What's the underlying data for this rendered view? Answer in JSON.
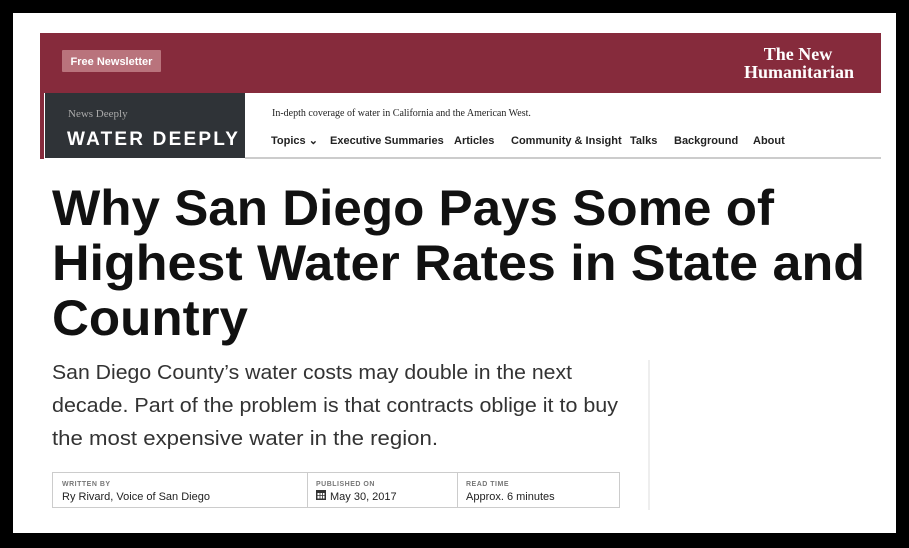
{
  "header": {
    "newsletter_button": "Free Newsletter",
    "brand_line1": "The New",
    "brand_line2": "Humanitarian"
  },
  "site": {
    "network": "News Deeply",
    "name": "WATER DEEPLY",
    "tagline": "In-depth coverage of water in California and the American West."
  },
  "nav": [
    "Topics ⌄",
    "Executive Summaries",
    "Articles",
    "Community & Insight",
    "Talks",
    "Background",
    "About"
  ],
  "article": {
    "headline": [
      "Why San Diego Pays Some of",
      "Highest Water Rates in State and",
      "Country"
    ],
    "summary": [
      "San Diego County’s water costs may double in the next",
      "decade. Part of the problem is that contracts oblige it to buy",
      "the most expensive water in the region."
    ],
    "meta": [
      {
        "label": "WRITTEN BY",
        "value": "Ry Rivard, Voice of San Diego"
      },
      {
        "label": "PUBLISHED ON",
        "value": "May 30, 2017"
      },
      {
        "label": "READ TIME",
        "value": "Approx. 6 minutes"
      }
    ]
  }
}
